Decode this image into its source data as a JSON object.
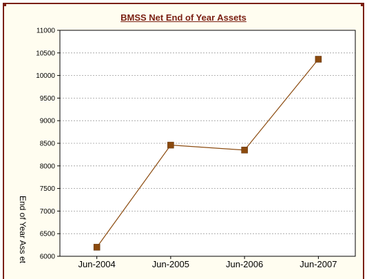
{
  "chart_data": {
    "type": "line",
    "title": "BMSS Net End of Year Assets",
    "ylabel": "End of Year Ass et",
    "xlabel": "",
    "categories": [
      "Jun-2004",
      "Jun-2005",
      "Jun-2006",
      "Jun-2007"
    ],
    "series": [
      {
        "values": [
          6200,
          8460,
          8350,
          10360
        ],
        "color": "#8b4a0e"
      }
    ],
    "ylim": [
      6000,
      11000
    ],
    "yticks": [
      "6000",
      "6500",
      "7000",
      "7500",
      "8000",
      "8500",
      "9000",
      "9500",
      "10000",
      "10500",
      "11000"
    ],
    "grid": true,
    "border_color": "#7a1f12",
    "title_color": "#7a1f12"
  }
}
